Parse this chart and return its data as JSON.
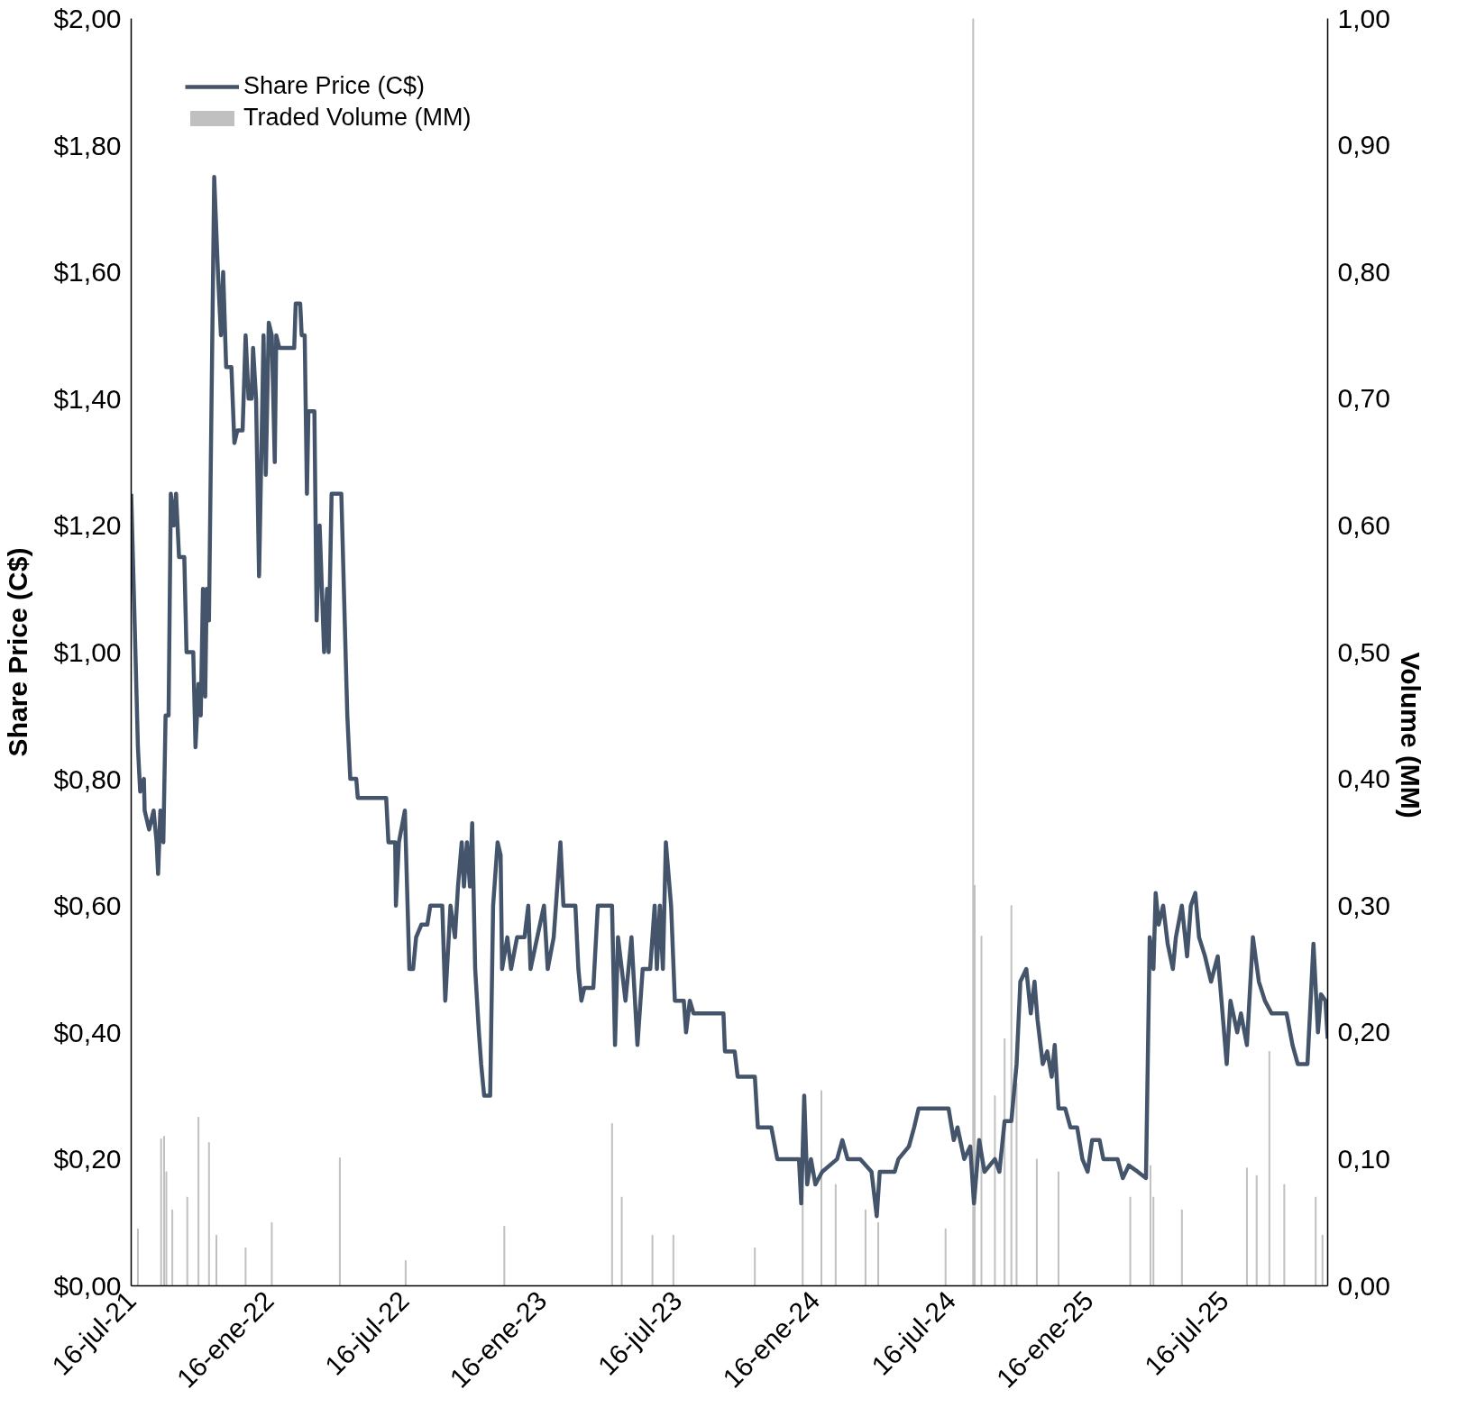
{
  "chart_data": {
    "type": "line",
    "ylabel": "Share Price (C$)",
    "y2label": "Volume (MM)",
    "xlim": [
      "2021-07-16",
      "2025-12-02"
    ],
    "xticks": [
      {
        "value": "2021-07-16",
        "label": "16-jul-21"
      },
      {
        "value": "2022-01-16",
        "label": "16-ene-22"
      },
      {
        "value": "2022-07-16",
        "label": "16-jul-22"
      },
      {
        "value": "2023-01-16",
        "label": "16-ene-23"
      },
      {
        "value": "2023-07-16",
        "label": "16-jul-23"
      },
      {
        "value": "2024-01-16",
        "label": "16-ene-24"
      },
      {
        "value": "2024-07-16",
        "label": "16-jul-24"
      },
      {
        "value": "2025-01-16",
        "label": "16-ene-25"
      },
      {
        "value": "2025-07-16",
        "label": "16-jul-25"
      }
    ],
    "ylim": [
      0,
      2
    ],
    "yticks": [
      {
        "value": 0,
        "label": "$0,00"
      },
      {
        "value": 0.2,
        "label": "$0,20"
      },
      {
        "value": 0.4,
        "label": "$0,40"
      },
      {
        "value": 0.6,
        "label": "$0,60"
      },
      {
        "value": 0.8,
        "label": "$0,80"
      },
      {
        "value": 1,
        "label": "$1,00"
      },
      {
        "value": 1.2,
        "label": "$1,20"
      },
      {
        "value": 1.4,
        "label": "$1,40"
      },
      {
        "value": 1.6,
        "label": "$1,60"
      },
      {
        "value": 1.8,
        "label": "$1,80"
      },
      {
        "value": 2,
        "label": "$2,00"
      }
    ],
    "y2lim": [
      0,
      1
    ],
    "y2ticks": [
      {
        "value": 0,
        "label": "0,00"
      },
      {
        "value": 0.1,
        "label": "0,10"
      },
      {
        "value": 0.2,
        "label": "0,20"
      },
      {
        "value": 0.3,
        "label": "0,30"
      },
      {
        "value": 0.4,
        "label": "0,40"
      },
      {
        "value": 0.5,
        "label": "0,50"
      },
      {
        "value": 0.6,
        "label": "0,60"
      },
      {
        "value": 0.7,
        "label": "0,70"
      },
      {
        "value": 0.8,
        "label": "0,80"
      },
      {
        "value": 0.9,
        "label": "0,90"
      },
      {
        "value": 1,
        "label": "1,00"
      }
    ],
    "grid": false,
    "legend": "top left",
    "series": [
      {
        "name": "Share Price (C$)",
        "color": "#44546a",
        "x": [
          "2021-07-16",
          "2021-07-21",
          "2021-07-25",
          "2021-07-28",
          "2021-08-02",
          "2021-08-03",
          "2021-08-09",
          "2021-08-15",
          "2021-08-19",
          "2021-08-21",
          "2021-08-24",
          "2021-08-28",
          "2021-08-31",
          "2021-09-04",
          "2021-09-07",
          "2021-09-11",
          "2021-09-14",
          "2021-09-18",
          "2021-09-25",
          "2021-09-28",
          "2021-10-07",
          "2021-10-10",
          "2021-10-14",
          "2021-10-17",
          "2021-10-20",
          "2021-10-23",
          "2021-10-25",
          "2021-10-28",
          "2021-11-04",
          "2021-11-09",
          "2021-11-13",
          "2021-11-16",
          "2021-11-20",
          "2021-11-27",
          "2021-12-01",
          "2021-12-05",
          "2021-12-12",
          "2021-12-16",
          "2021-12-20",
          "2021-12-24",
          "2021-12-26",
          "2021-12-30",
          "2022-01-03",
          "2022-01-09",
          "2022-01-12",
          "2022-01-16",
          "2022-01-20",
          "2022-01-24",
          "2022-01-26",
          "2022-01-30",
          "2022-02-19",
          "2022-02-21",
          "2022-02-27",
          "2022-03-01",
          "2022-03-05",
          "2022-03-08",
          "2022-03-10",
          "2022-03-18",
          "2022-03-21",
          "2022-03-25",
          "2022-03-31",
          "2022-04-04",
          "2022-04-06",
          "2022-04-10",
          "2022-04-23",
          "2022-04-28",
          "2022-05-01",
          "2022-05-05",
          "2022-05-13",
          "2022-05-15",
          "2022-06-22",
          "2022-06-25",
          "2022-07-04",
          "2022-07-05",
          "2022-07-09",
          "2022-07-17",
          "2022-07-23",
          "2022-07-28",
          "2022-08-01",
          "2022-08-08",
          "2022-08-16",
          "2022-08-20",
          "2022-09-05",
          "2022-09-09",
          "2022-09-16",
          "2022-09-22",
          "2022-09-26",
          "2022-10-01",
          "2022-10-04",
          "2022-10-08",
          "2022-10-12",
          "2022-10-15",
          "2022-10-19",
          "2022-10-24",
          "2022-10-27",
          "2022-10-31",
          "2022-11-08",
          "2022-11-12",
          "2022-11-18",
          "2022-11-22",
          "2022-11-24",
          "2022-12-01",
          "2022-12-06",
          "2022-12-14",
          "2022-12-24",
          "2022-12-29",
          "2023-01-01",
          "2023-01-19",
          "2023-01-24",
          "2023-02-01",
          "2023-02-10",
          "2023-02-14",
          "2023-03-02",
          "2023-03-06",
          "2023-03-10",
          "2023-03-14",
          "2023-03-26",
          "2023-04-01",
          "2023-04-20",
          "2023-04-24",
          "2023-04-28",
          "2023-05-08",
          "2023-05-16",
          "2023-05-24",
          "2023-05-31",
          "2023-06-10",
          "2023-06-16",
          "2023-06-19",
          "2023-06-23",
          "2023-06-27",
          "2023-07-01",
          "2023-07-08",
          "2023-07-13",
          "2023-07-25",
          "2023-07-28",
          "2023-08-02",
          "2023-08-07",
          "2023-09-16",
          "2023-09-18",
          "2023-10-01",
          "2023-10-05",
          "2023-10-28",
          "2023-11-01",
          "2023-11-19",
          "2023-11-27",
          "2023-12-26",
          "2023-12-29",
          "2024-01-02",
          "2024-01-06",
          "2024-01-11",
          "2024-01-17",
          "2024-01-26",
          "2024-02-15",
          "2024-02-22",
          "2024-02-29",
          "2024-03-17",
          "2024-04-01",
          "2024-04-08",
          "2024-04-12",
          "2024-05-02",
          "2024-05-07",
          "2024-05-21",
          "2024-05-28",
          "2024-06-03",
          "2024-07-13",
          "2024-07-20",
          "2024-07-25",
          "2024-08-03",
          "2024-08-11",
          "2024-08-16",
          "2024-08-23",
          "2024-08-30",
          "2024-09-13",
          "2024-09-19",
          "2024-09-26",
          "2024-10-05",
          "2024-10-12",
          "2024-10-17",
          "2024-10-25",
          "2024-10-31",
          "2024-11-05",
          "2024-11-09",
          "2024-11-16",
          "2024-11-22",
          "2024-11-28",
          "2024-12-02",
          "2024-12-07",
          "2024-12-16",
          "2024-12-23",
          "2025-01-01",
          "2025-01-08",
          "2025-01-15",
          "2025-01-21",
          "2025-01-31",
          "2025-02-05",
          "2025-02-24",
          "2025-03-03",
          "2025-03-11",
          "2025-03-23",
          "2025-04-03",
          "2025-04-08",
          "2025-04-13",
          "2025-04-16",
          "2025-04-20",
          "2025-04-26",
          "2025-05-02",
          "2025-05-09",
          "2025-05-13",
          "2025-05-21",
          "2025-05-28",
          "2025-06-02",
          "2025-06-08",
          "2025-06-13",
          "2025-06-21",
          "2025-06-29",
          "2025-07-08",
          "2025-07-13",
          "2025-07-20",
          "2025-07-25",
          "2025-08-03",
          "2025-08-08",
          "2025-08-16",
          "2025-08-24",
          "2025-09-01",
          "2025-09-09",
          "2025-09-18",
          "2025-10-08",
          "2025-10-16",
          "2025-10-23",
          "2025-11-05",
          "2025-11-13",
          "2025-11-19",
          "2025-11-23",
          "2025-11-29",
          "2025-12-02"
        ],
        "values": [
          1.25,
          1.03,
          0.85,
          0.78,
          0.8,
          0.75,
          0.72,
          0.75,
          0.7,
          0.65,
          0.75,
          0.7,
          0.9,
          0.9,
          1.25,
          1.2,
          1.25,
          1.15,
          1.15,
          1.0,
          1.0,
          0.85,
          0.95,
          0.9,
          1.1,
          0.93,
          1.1,
          1.05,
          1.75,
          1.6,
          1.5,
          1.6,
          1.45,
          1.45,
          1.33,
          1.35,
          1.35,
          1.5,
          1.4,
          1.4,
          1.48,
          1.4,
          1.12,
          1.5,
          1.28,
          1.52,
          1.5,
          1.3,
          1.5,
          1.48,
          1.48,
          1.55,
          1.55,
          1.5,
          1.5,
          1.25,
          1.38,
          1.38,
          1.05,
          1.2,
          1.0,
          1.1,
          1.0,
          1.25,
          1.25,
          1.03,
          0.9,
          0.8,
          0.8,
          0.77,
          0.77,
          0.7,
          0.7,
          0.6,
          0.7,
          0.75,
          0.5,
          0.5,
          0.55,
          0.57,
          0.57,
          0.6,
          0.6,
          0.45,
          0.6,
          0.55,
          0.63,
          0.7,
          0.63,
          0.7,
          0.63,
          0.73,
          0.5,
          0.4,
          0.35,
          0.3,
          0.3,
          0.6,
          0.7,
          0.68,
          0.5,
          0.55,
          0.5,
          0.55,
          0.55,
          0.6,
          0.5,
          0.6,
          0.5,
          0.55,
          0.7,
          0.6,
          0.6,
          0.5,
          0.45,
          0.47,
          0.47,
          0.6,
          0.6,
          0.38,
          0.55,
          0.45,
          0.55,
          0.38,
          0.5,
          0.5,
          0.6,
          0.5,
          0.6,
          0.5,
          0.7,
          0.6,
          0.45,
          0.45,
          0.4,
          0.45,
          0.43,
          0.43,
          0.37,
          0.37,
          0.33,
          0.33,
          0.25,
          0.25,
          0.2,
          0.2,
          0.13,
          0.3,
          0.16,
          0.2,
          0.16,
          0.18,
          0.2,
          0.23,
          0.2,
          0.2,
          0.18,
          0.11,
          0.18,
          0.18,
          0.2,
          0.22,
          0.25,
          0.28,
          0.28,
          0.23,
          0.25,
          0.2,
          0.22,
          0.13,
          0.23,
          0.18,
          0.2,
          0.18,
          0.26,
          0.26,
          0.35,
          0.48,
          0.5,
          0.43,
          0.48,
          0.42,
          0.35,
          0.37,
          0.33,
          0.38,
          0.28,
          0.28,
          0.25,
          0.25,
          0.2,
          0.18,
          0.23,
          0.23,
          0.2,
          0.2,
          0.17,
          0.19,
          0.18,
          0.17,
          0.55,
          0.5,
          0.62,
          0.57,
          0.6,
          0.54,
          0.5,
          0.55,
          0.6,
          0.52,
          0.6,
          0.62,
          0.55,
          0.52,
          0.48,
          0.52,
          0.45,
          0.35,
          0.45,
          0.4,
          0.43,
          0.38,
          0.55,
          0.48,
          0.45,
          0.43,
          0.43,
          0.38,
          0.35,
          0.35,
          0.54,
          0.4,
          0.46,
          0.45,
          0.39
        ]
      },
      {
        "name": "Traded Volume (MM)",
        "type": "bar",
        "axis": "y2",
        "color": "#c0c0c0",
        "x": [
          "2021-07-25",
          "2021-08-25",
          "2021-08-29",
          "2021-09-01",
          "2021-09-09",
          "2021-09-29",
          "2021-10-14",
          "2021-10-28",
          "2021-11-07",
          "2021-12-16",
          "2022-01-20",
          "2022-04-21",
          "2022-07-18",
          "2022-11-27",
          "2023-04-20",
          "2023-05-03",
          "2023-06-13",
          "2023-07-11",
          "2023-10-28",
          "2023-12-31",
          "2024-01-25",
          "2024-02-13",
          "2024-03-24",
          "2024-04-10",
          "2024-07-09",
          "2024-08-15",
          "2024-08-17",
          "2024-08-26",
          "2024-09-13",
          "2024-09-26",
          "2024-10-05",
          "2024-10-12",
          "2024-11-08",
          "2024-12-07",
          "2025-03-13",
          "2025-04-09",
          "2025-04-13",
          "2025-05-21",
          "2025-08-16",
          "2025-08-29",
          "2025-09-15",
          "2025-10-05",
          "2025-11-16",
          "2025-11-25"
        ],
        "values": [
          0.045,
          0.116,
          0.118,
          0.09,
          0.06,
          0.07,
          0.133,
          0.113,
          0.04,
          0.03,
          0.05,
          0.101,
          0.02,
          0.047,
          0.128,
          0.07,
          0.04,
          0.04,
          0.03,
          0.075,
          0.154,
          0.08,
          0.06,
          0.05,
          0.045,
          1.0,
          0.316,
          0.276,
          0.15,
          0.195,
          0.3,
          0.16,
          0.1,
          0.09,
          0.07,
          0.095,
          0.07,
          0.06,
          0.093,
          0.087,
          0.185,
          0.08,
          0.07,
          0.04
        ]
      }
    ]
  }
}
